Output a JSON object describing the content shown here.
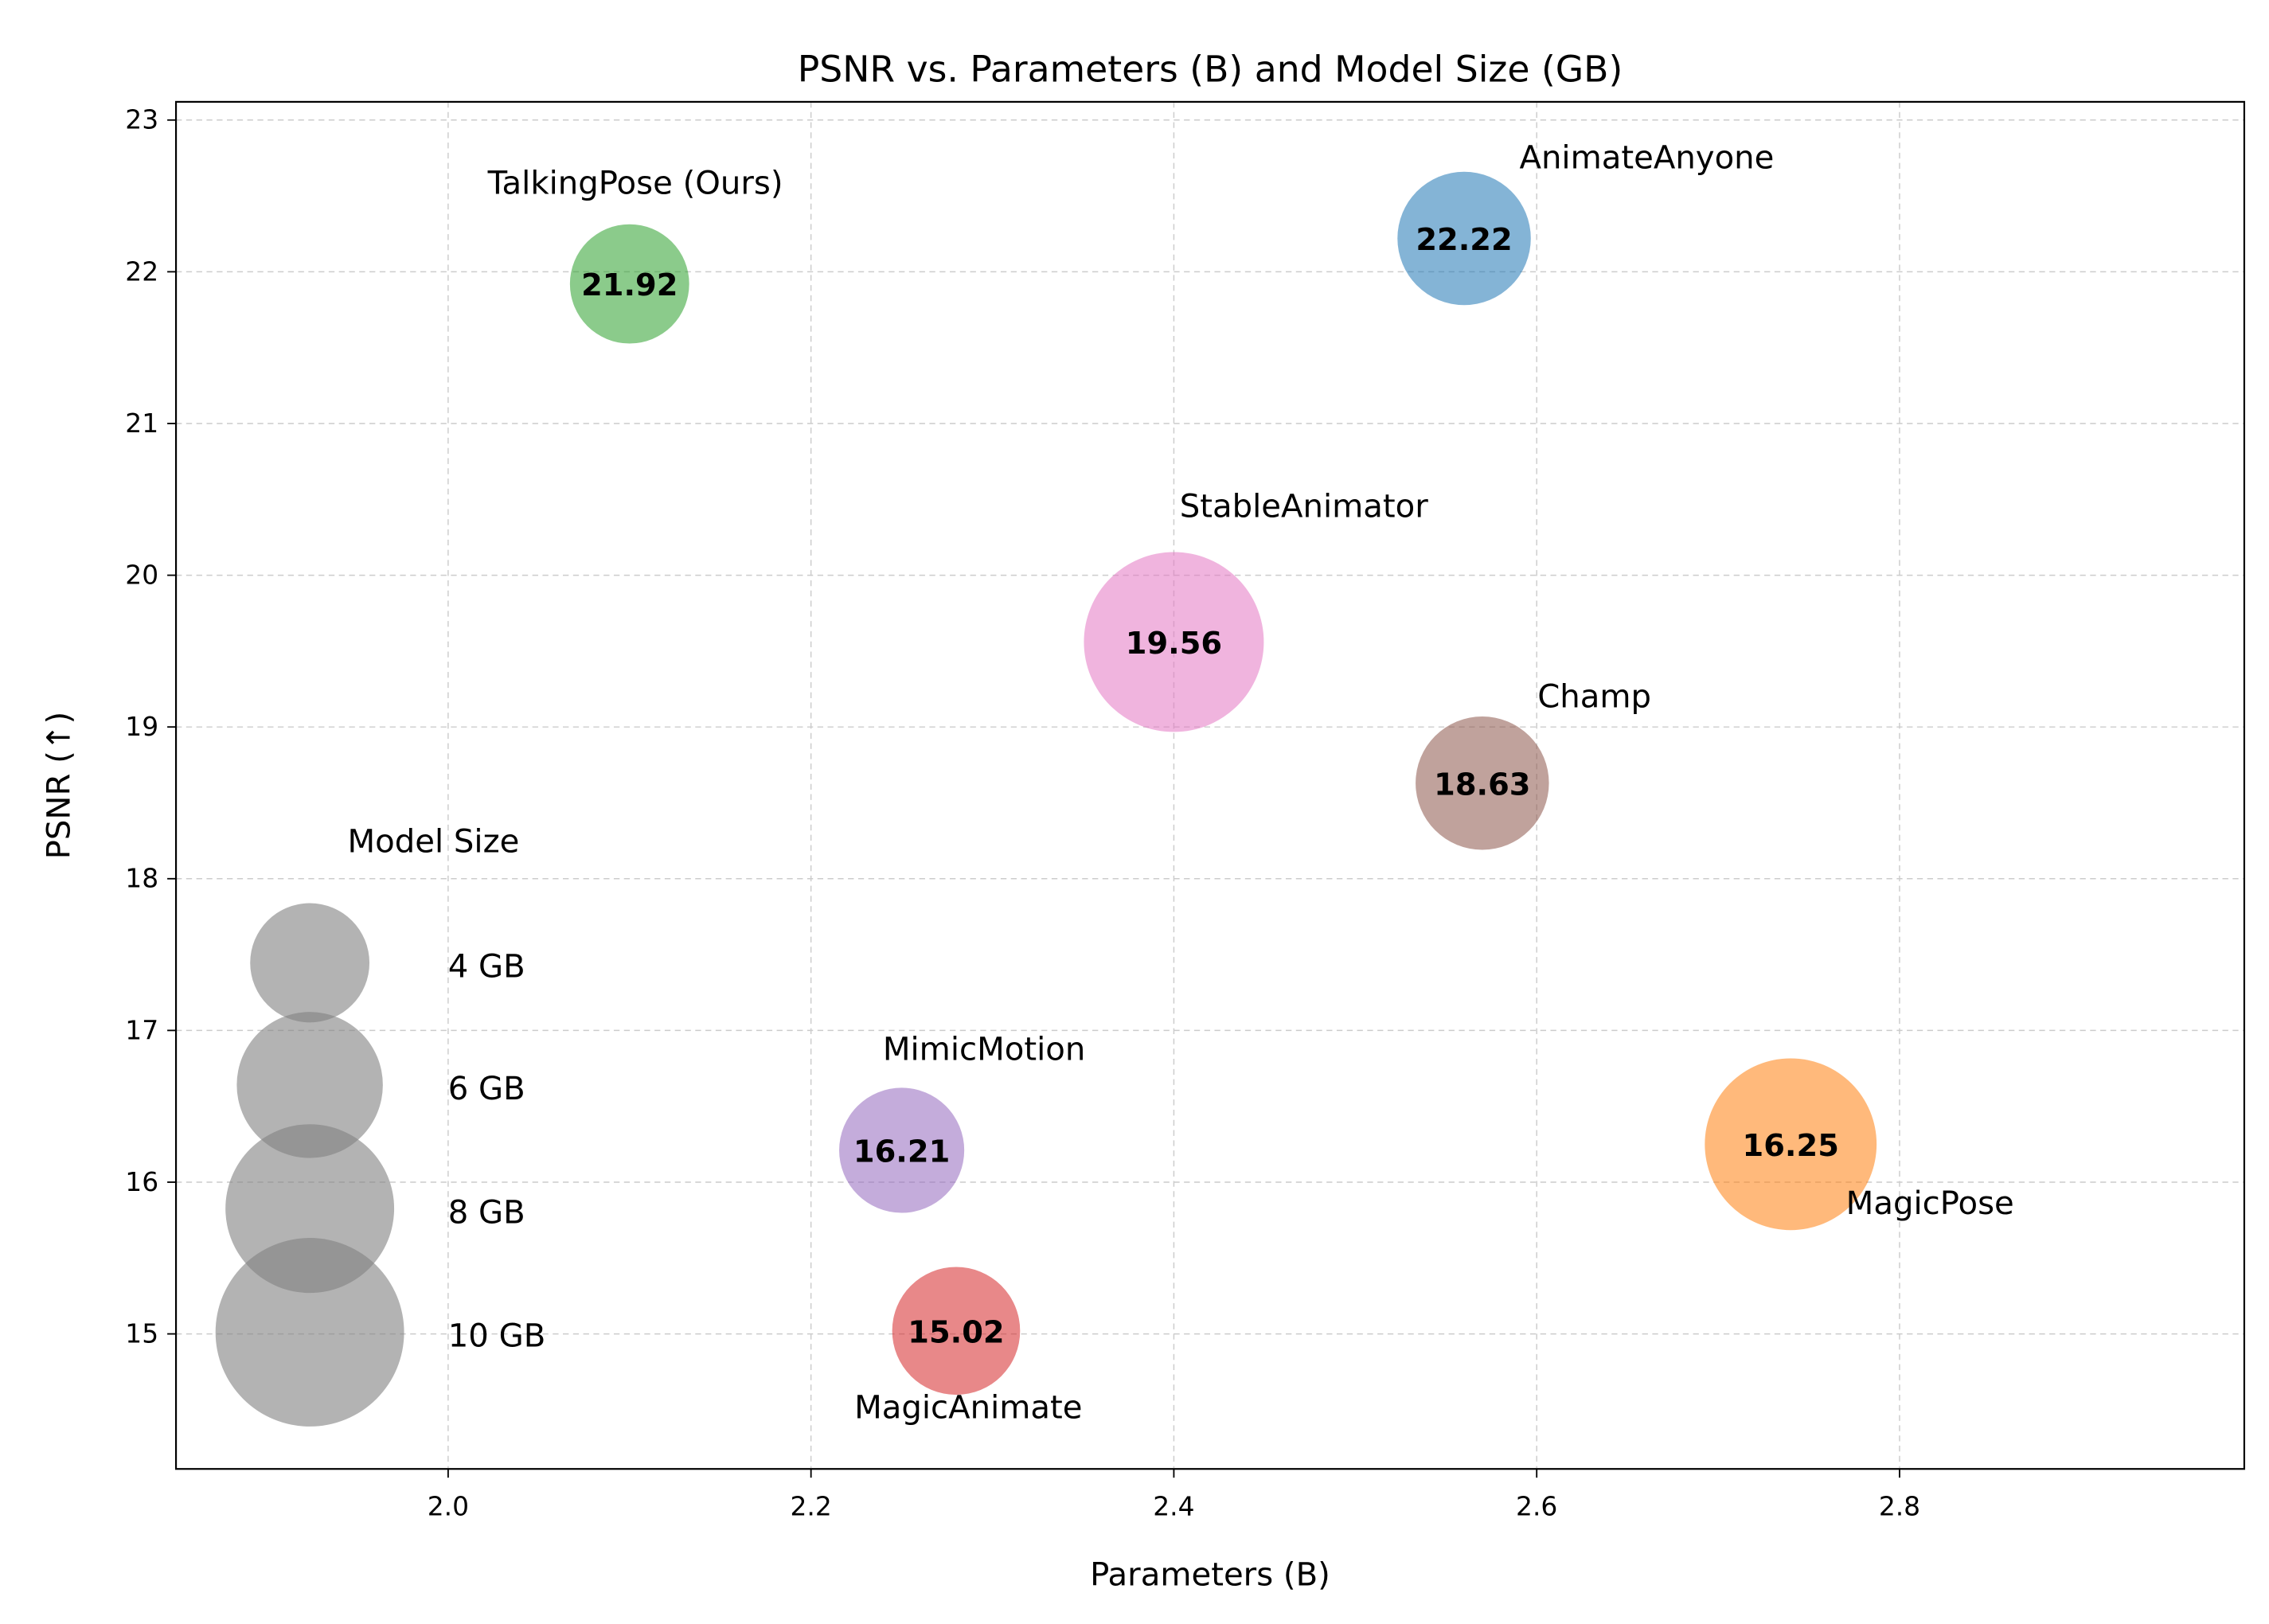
{
  "chart_data": {
    "type": "scatter",
    "title": "PSNR vs. Parameters (B) and Model Size (GB)",
    "xlabel": "Parameters (B)",
    "ylabel": "PSNR (↑)",
    "xlim": [
      1.85,
      2.99
    ],
    "ylim": [
      14.11,
      23.12
    ],
    "xticks": [
      "2.0",
      "2.2",
      "2.4",
      "2.6",
      "2.8"
    ],
    "yticks": [
      "15",
      "16",
      "17",
      "18",
      "19",
      "20",
      "21",
      "22",
      "23"
    ],
    "grid": true,
    "points": [
      {
        "name": "TalkingPose (Ours)",
        "x": 2.1,
        "y": 21.92,
        "label": "21.92",
        "size_gb": 4.0,
        "color": "#2ca02c"
      },
      {
        "name": "AnimateAnyone",
        "x": 2.56,
        "y": 22.22,
        "label": "22.22",
        "size_gb": 5.0,
        "color": "#1f77b4"
      },
      {
        "name": "StableAnimator",
        "x": 2.4,
        "y": 19.56,
        "label": "19.56",
        "size_gb": 9.1,
        "color": "#e377c2"
      },
      {
        "name": "Champ",
        "x": 2.57,
        "y": 18.63,
        "label": "18.63",
        "size_gb": 5.0,
        "color": "#8c564b"
      },
      {
        "name": "MimicMotion",
        "x": 2.25,
        "y": 16.21,
        "label": "16.21",
        "size_gb": 4.4,
        "color": "#9467bd"
      },
      {
        "name": "MagicPose",
        "x": 2.74,
        "y": 16.25,
        "label": "16.25",
        "size_gb": 8.3,
        "color": "#ff7f0e"
      },
      {
        "name": "MagicAnimate",
        "x": 2.28,
        "y": 15.02,
        "label": "15.02",
        "size_gb": 4.6,
        "color": "#d62728"
      }
    ],
    "legend": {
      "title": "Model Size",
      "placement": "lower-left",
      "entries": [
        {
          "label": "4 GB",
          "size_gb": 4
        },
        {
          "label": "6 GB",
          "size_gb": 6
        },
        {
          "label": "8 GB",
          "size_gb": 8
        },
        {
          "label": "10 GB",
          "size_gb": 10
        }
      ]
    }
  }
}
